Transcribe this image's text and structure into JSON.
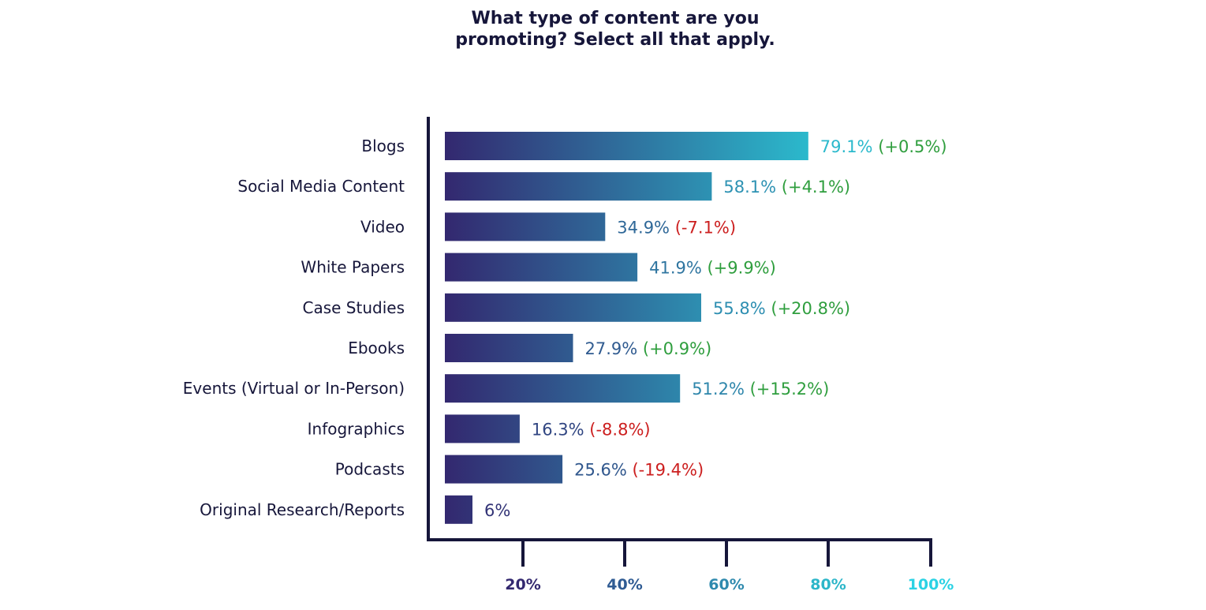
{
  "chart_data": {
    "type": "bar",
    "orientation": "horizontal",
    "title_lines": [
      "What type of content are you",
      "promoting? Select all that apply."
    ],
    "categories": [
      "Blogs",
      "Social Media Content",
      "Video",
      "White Papers",
      "Case Studies",
      "Ebooks",
      "Events (Virtual or In-Person)",
      "Infographics",
      "Podcasts",
      "Original Research/Reports"
    ],
    "values": [
      79.1,
      58.1,
      34.9,
      41.9,
      55.8,
      27.9,
      51.2,
      16.3,
      25.6,
      6
    ],
    "value_labels": [
      "79.1%",
      "58.1%",
      "34.9%",
      "41.9%",
      "55.8%",
      "27.9%",
      "51.2%",
      "16.3%",
      "25.6%",
      "6%"
    ],
    "changes": [
      "(+0.5%)",
      "(+4.1%)",
      "(-7.1%)",
      "(+9.9%)",
      "(+20.8%)",
      "(+0.9%)",
      "(+15.2%)",
      "(-8.8%)",
      "(-19.4%)",
      ""
    ],
    "x_ticks": [
      "20%",
      "40%",
      "60%",
      "80%",
      "100%"
    ],
    "x_tick_values": [
      20,
      40,
      60,
      80,
      100
    ],
    "xlim": [
      0,
      100
    ],
    "colors": {
      "gradient_start": "#33286f",
      "gradient_end": "#2bb9cc",
      "positive": "#2f9e3e",
      "negative": "#cc1f1f",
      "axis": "#16163a",
      "text": "#16163a",
      "tick_colors": [
        "#33286f",
        "#2f5b93",
        "#2f8aae",
        "#2cb6c9",
        "#2bd2e4"
      ]
    }
  }
}
